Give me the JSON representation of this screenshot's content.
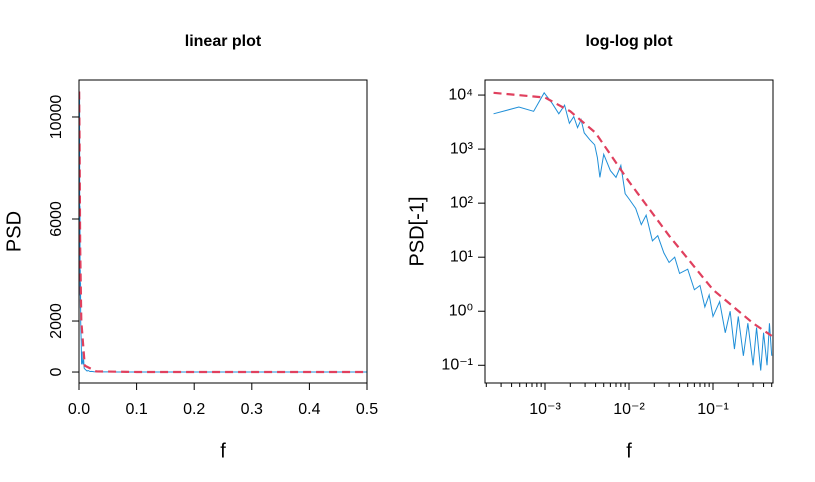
{
  "chart_data": [
    {
      "type": "line",
      "title": "linear plot",
      "x_label": "f",
      "y_label": "PSD",
      "xlim": [
        0,
        0.5
      ],
      "ylim": [
        -430,
        11450
      ],
      "xticks": [
        {
          "value": 0,
          "label": "0.0"
        },
        0.1,
        0.2,
        0.3,
        0.4,
        0.5
      ],
      "yticks": [
        0,
        2000,
        6000,
        10000
      ],
      "series": [
        {
          "color": "#1f8fd8",
          "dash": false,
          "x": [
            0.000244,
            0.000488,
            0.000732,
            0.000977,
            0.00122,
            0.00146,
            0.00171,
            0.00195,
            0.0022,
            0.00244,
            0.00269,
            0.00293,
            0.0034,
            0.0039,
            0.0042,
            0.0045,
            0.005,
            0.006,
            0.007,
            0.008,
            0.009,
            0.01,
            0.012,
            0.014,
            0.016,
            0.019,
            0.022,
            0.026,
            0.03,
            0.035,
            0.04,
            0.05,
            0.06,
            0.07,
            0.08,
            0.09,
            0.1,
            0.12,
            0.14,
            0.16,
            0.18,
            0.2,
            0.23,
            0.26,
            0.3,
            0.33,
            0.37,
            0.4,
            0.44,
            0.47,
            0.5
          ],
          "values": [
            4500,
            6000,
            5000,
            11000,
            7000,
            4500,
            6500,
            3000,
            4000,
            2500,
            3500,
            2000,
            1500,
            1200,
            700,
            300,
            800,
            400,
            300,
            500,
            150,
            120,
            80,
            40,
            60,
            20,
            25,
            12,
            8,
            10,
            5,
            6,
            2.5,
            3,
            1.2,
            2,
            0.8,
            1.5,
            0.4,
            1,
            0.2,
            0.8,
            0.15,
            0.6,
            0.1,
            0.5,
            0.08,
            0.4,
            0.1,
            0.6,
            0.15
          ]
        },
        {
          "color": "#e0405e",
          "dash": true,
          "x": [
            0.000244,
            0.001,
            0.002,
            0.004,
            0.01,
            0.03,
            0.1,
            0.3,
            0.5
          ],
          "values": [
            11000,
            9000,
            5000,
            2000,
            250,
            25,
            2.5,
            0.6,
            0.35
          ]
        }
      ]
    },
    {
      "type": "line",
      "title": "log-log plot",
      "x_label": "f",
      "y_label": "PSD[-1]",
      "xlog": true,
      "ylog": true,
      "xlim": [
        0.000193,
        0.518
      ],
      "ylim": [
        0.047,
        19000
      ],
      "xticks": [
        {
          "value": 0.001,
          "label": "10⁻³"
        },
        {
          "value": 0.01,
          "label": "10⁻²"
        },
        {
          "value": 0.1,
          "label": "10⁻¹"
        }
      ],
      "yticks": [
        {
          "value": 0.1,
          "label": "10⁻¹"
        },
        {
          "value": 1,
          "label": "10⁰"
        },
        {
          "value": 10,
          "label": "10¹"
        },
        {
          "value": 100,
          "label": "10²"
        },
        {
          "value": 1000,
          "label": "10³"
        },
        {
          "value": 10000,
          "label": "10⁴"
        }
      ],
      "series": [
        {
          "color": "#1f8fd8",
          "dash": false,
          "x": [
            0.000244,
            0.000488,
            0.000732,
            0.000977,
            0.00122,
            0.00146,
            0.00171,
            0.00195,
            0.0022,
            0.00244,
            0.00269,
            0.00293,
            0.0034,
            0.0039,
            0.0042,
            0.0045,
            0.005,
            0.006,
            0.007,
            0.008,
            0.009,
            0.01,
            0.012,
            0.014,
            0.016,
            0.019,
            0.022,
            0.026,
            0.03,
            0.035,
            0.04,
            0.05,
            0.06,
            0.07,
            0.08,
            0.09,
            0.1,
            0.12,
            0.14,
            0.16,
            0.18,
            0.2,
            0.23,
            0.26,
            0.3,
            0.33,
            0.37,
            0.4,
            0.44,
            0.47,
            0.5
          ],
          "values": [
            4500,
            6000,
            5000,
            11000,
            7000,
            4500,
            6500,
            3000,
            4000,
            2500,
            3500,
            2000,
            1500,
            1200,
            700,
            300,
            800,
            400,
            300,
            500,
            150,
            120,
            80,
            40,
            60,
            20,
            25,
            12,
            8,
            10,
            5,
            6,
            2.5,
            3,
            1.2,
            2,
            0.8,
            1.5,
            0.4,
            1,
            0.2,
            0.8,
            0.15,
            0.6,
            0.1,
            0.5,
            0.08,
            0.4,
            0.1,
            0.6,
            0.15
          ]
        },
        {
          "color": "#e0405e",
          "dash": true,
          "x": [
            0.000244,
            0.001,
            0.002,
            0.004,
            0.01,
            0.03,
            0.1,
            0.3,
            0.5
          ],
          "values": [
            11000,
            9000,
            5000,
            2000,
            250,
            25,
            2.5,
            0.6,
            0.35
          ]
        }
      ]
    }
  ]
}
